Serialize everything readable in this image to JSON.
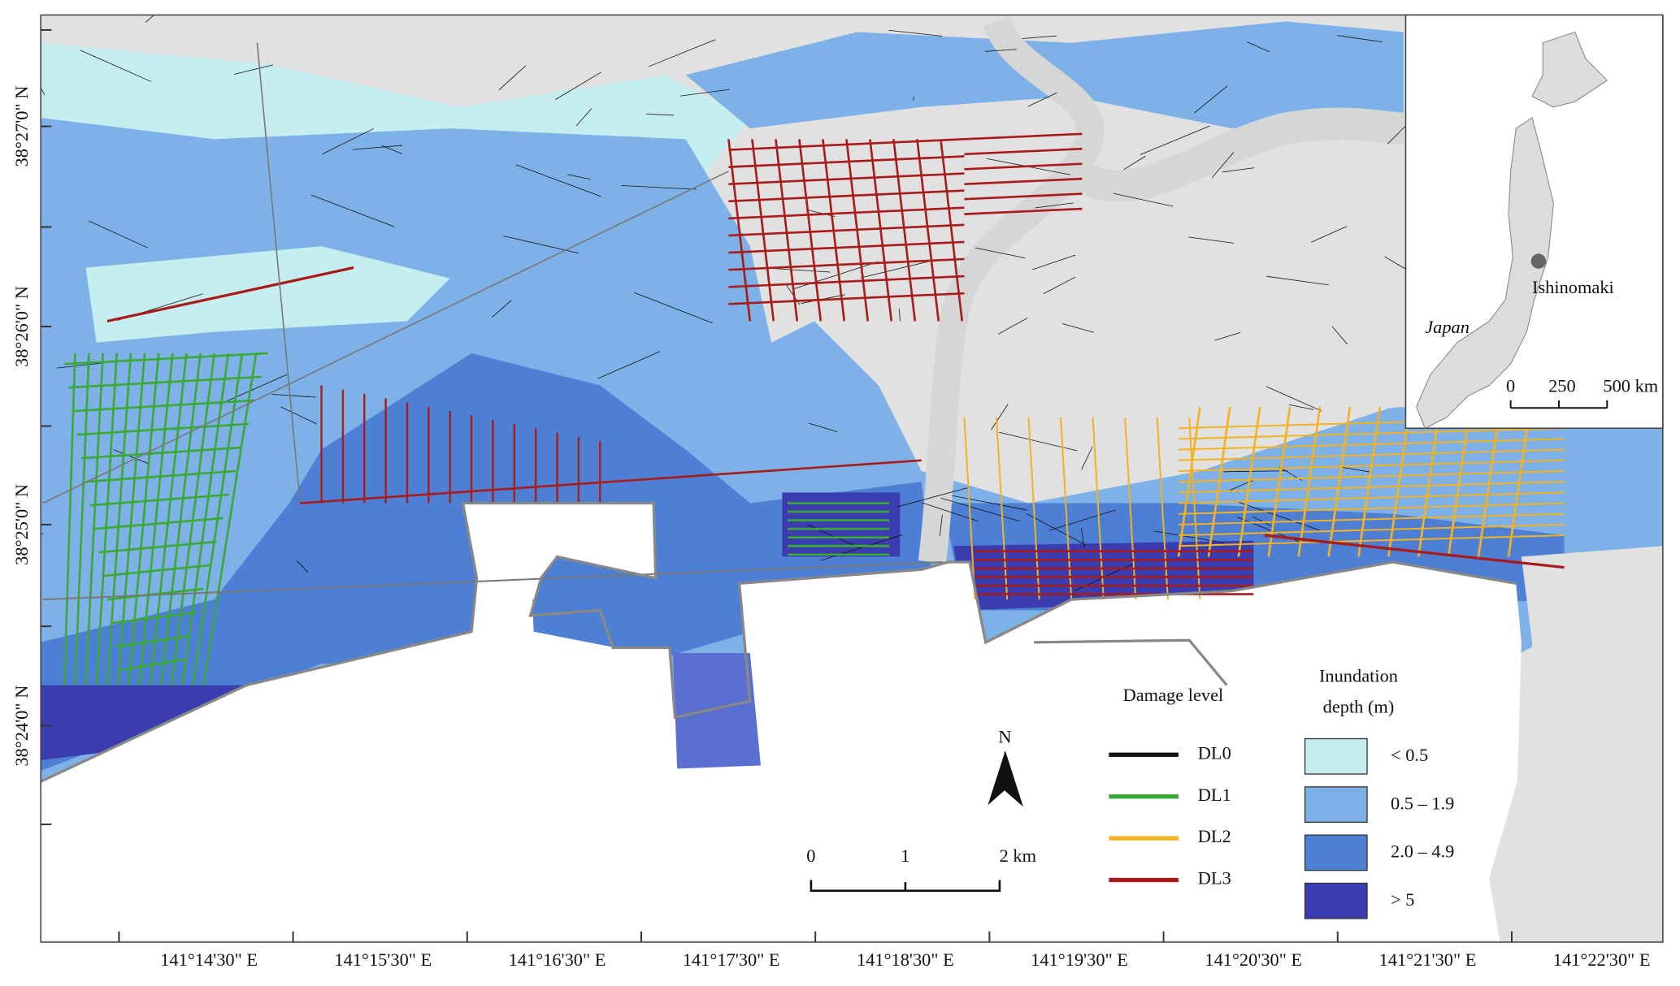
{
  "map": {
    "lat_labels": [
      "38°27'0\" N",
      "38°26'0\" N",
      "38°25'0\" N",
      "38°24'0\" N"
    ],
    "lon_labels": [
      "141°14'30\" E",
      "141°15'30\" E",
      "141°16'30\" E",
      "141°17'30\" E",
      "141°18'30\" E",
      "141°19'30\" E",
      "141°20'30\" E",
      "141°21'30\" E",
      "141°22'30\" E"
    ],
    "north": "N",
    "scale_bar": [
      "0",
      "1",
      "2 km"
    ],
    "damage_legend": {
      "title": "Damage level",
      "items": [
        {
          "label": "DL0",
          "color": "#111111"
        },
        {
          "label": "DL1",
          "color": "#3aa935"
        },
        {
          "label": "DL2",
          "color": "#f4b120"
        },
        {
          "label": "DL3",
          "color": "#a81c1c"
        }
      ]
    },
    "depth_legend": {
      "title": [
        "Inundation",
        "depth (m)"
      ],
      "items": [
        {
          "label": "< 0.5",
          "color": "#c6eef0"
        },
        {
          "label": "0.5 – 1.9",
          "color": "#7db1e8"
        },
        {
          "label": "2.0 – 4.9",
          "color": "#4d7fd4"
        },
        {
          "label": "> 5",
          "color": "#3a3cb0"
        }
      ]
    },
    "inset": {
      "place": "Ishinomaki",
      "country": "Japan",
      "scale_bar": [
        "0",
        "250",
        "500 km"
      ]
    }
  }
}
